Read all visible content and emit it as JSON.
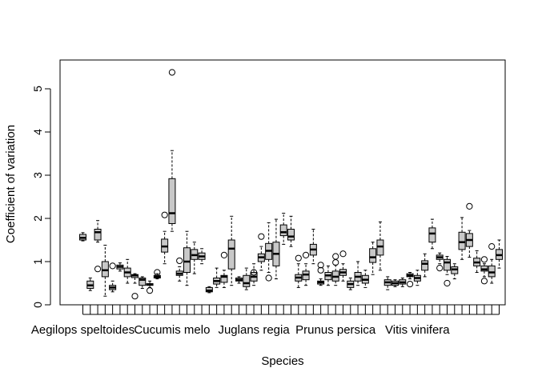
{
  "chart_data": {
    "type": "boxplot",
    "title": "",
    "xlabel": "Species",
    "ylabel": "Coefficient of variation",
    "ylim": [
      0,
      5.55
    ],
    "yticks": [
      0,
      1,
      2,
      3,
      4,
      5
    ],
    "grid": false,
    "legend": "none",
    "box_fill": "#c8c8c8",
    "xtick_labels": [
      {
        "index": 1,
        "label": "Aegilops speltoides"
      },
      {
        "index": 13,
        "label": "Cucumis melo"
      },
      {
        "index": 24,
        "label": "Juglans regia"
      },
      {
        "index": 35,
        "label": "Prunus persica"
      },
      {
        "index": 46,
        "label": "Vitis vinifera"
      }
    ],
    "boxes": [
      {
        "q1": 1.5,
        "med": 1.55,
        "q3": 1.63,
        "wlo": 1.48,
        "whi": 1.67,
        "out": []
      },
      {
        "q1": 0.38,
        "med": 0.45,
        "q3": 0.55,
        "wlo": 0.33,
        "whi": 0.62,
        "out": []
      },
      {
        "q1": 1.5,
        "med": 1.68,
        "q3": 1.75,
        "wlo": 1.45,
        "whi": 1.95,
        "out": [
          0.83
        ]
      },
      {
        "q1": 0.65,
        "med": 0.8,
        "q3": 1.0,
        "wlo": 0.2,
        "whi": 1.38,
        "out": []
      },
      {
        "q1": 0.35,
        "med": 0.4,
        "q3": 0.45,
        "wlo": 0.3,
        "whi": 0.55,
        "out": [
          0.9
        ]
      },
      {
        "q1": 0.83,
        "med": 0.88,
        "q3": 0.92,
        "wlo": 0.78,
        "whi": 0.97,
        "out": []
      },
      {
        "q1": 0.65,
        "med": 0.75,
        "q3": 0.85,
        "wlo": 0.5,
        "whi": 1.05,
        "out": []
      },
      {
        "q1": 0.63,
        "med": 0.68,
        "q3": 0.7,
        "wlo": 0.5,
        "whi": 0.72,
        "out": [
          0.2
        ]
      },
      {
        "q1": 0.45,
        "med": 0.58,
        "q3": 0.62,
        "wlo": 0.38,
        "whi": 0.65,
        "out": []
      },
      {
        "q1": 0.45,
        "med": 0.47,
        "q3": 0.49,
        "wlo": 0.4,
        "whi": 0.55,
        "out": [
          0.33
        ]
      },
      {
        "q1": 0.62,
        "med": 0.65,
        "q3": 0.68,
        "wlo": 0.6,
        "whi": 0.72,
        "out": [
          0.75
        ]
      },
      {
        "q1": 1.22,
        "med": 1.35,
        "q3": 1.52,
        "wlo": 0.95,
        "whi": 1.7,
        "out": [
          2.08
        ]
      },
      {
        "q1": 1.88,
        "med": 2.12,
        "q3": 2.92,
        "wlo": 1.7,
        "whi": 3.57,
        "out": [
          5.38
        ]
      },
      {
        "q1": 0.68,
        "med": 0.72,
        "q3": 0.78,
        "wlo": 0.55,
        "whi": 0.88,
        "out": [
          1.02
        ]
      },
      {
        "q1": 0.75,
        "med": 1.0,
        "q3": 1.32,
        "wlo": 0.45,
        "whi": 1.7,
        "out": []
      },
      {
        "q1": 1.05,
        "med": 1.15,
        "q3": 1.28,
        "wlo": 0.72,
        "whi": 1.45,
        "out": []
      },
      {
        "q1": 1.05,
        "med": 1.12,
        "q3": 1.2,
        "wlo": 0.95,
        "whi": 1.3,
        "out": []
      },
      {
        "q1": 0.3,
        "med": 0.33,
        "q3": 0.4,
        "wlo": 0.28,
        "whi": 0.42,
        "out": []
      },
      {
        "q1": 0.48,
        "med": 0.55,
        "q3": 0.62,
        "wlo": 0.4,
        "whi": 0.85,
        "out": []
      },
      {
        "q1": 0.52,
        "med": 0.65,
        "q3": 0.68,
        "wlo": 0.4,
        "whi": 0.8,
        "out": [
          1.15
        ]
      },
      {
        "q1": 0.83,
        "med": 1.3,
        "q3": 1.5,
        "wlo": 0.45,
        "whi": 2.05,
        "out": []
      },
      {
        "q1": 0.55,
        "med": 0.58,
        "q3": 0.62,
        "wlo": 0.5,
        "whi": 0.65,
        "out": []
      },
      {
        "q1": 0.42,
        "med": 0.5,
        "q3": 0.68,
        "wlo": 0.35,
        "whi": 0.85,
        "out": []
      },
      {
        "q1": 0.55,
        "med": 0.65,
        "q3": 0.75,
        "wlo": 0.45,
        "whi": 0.95,
        "out": [
          0.75
        ]
      },
      {
        "q1": 1.0,
        "med": 1.1,
        "q3": 1.18,
        "wlo": 0.8,
        "whi": 1.35,
        "out": [
          1.58
        ]
      },
      {
        "q1": 1.05,
        "med": 1.25,
        "q3": 1.42,
        "wlo": 0.75,
        "whi": 1.9,
        "out": [
          0.62
        ]
      },
      {
        "q1": 0.9,
        "med": 1.18,
        "q3": 1.45,
        "wlo": 0.6,
        "whi": 1.98,
        "out": []
      },
      {
        "q1": 1.6,
        "med": 1.68,
        "q3": 1.85,
        "wlo": 1.4,
        "whi": 2.12,
        "out": []
      },
      {
        "q1": 1.5,
        "med": 1.58,
        "q3": 1.75,
        "wlo": 1.35,
        "whi": 2.05,
        "out": []
      },
      {
        "q1": 0.55,
        "med": 0.63,
        "q3": 0.7,
        "wlo": 0.4,
        "whi": 0.95,
        "out": [
          1.08
        ]
      },
      {
        "q1": 0.58,
        "med": 0.7,
        "q3": 0.78,
        "wlo": 0.45,
        "whi": 0.95,
        "out": [
          1.15
        ]
      },
      {
        "q1": 1.15,
        "med": 1.28,
        "q3": 1.4,
        "wlo": 0.95,
        "whi": 1.75,
        "out": []
      },
      {
        "q1": 0.48,
        "med": 0.52,
        "q3": 0.55,
        "wlo": 0.45,
        "whi": 0.6,
        "out": [
          0.8,
          0.92
        ]
      },
      {
        "q1": 0.58,
        "med": 0.68,
        "q3": 0.75,
        "wlo": 0.45,
        "whi": 0.9,
        "out": []
      },
      {
        "q1": 0.55,
        "med": 0.65,
        "q3": 0.78,
        "wlo": 0.45,
        "whi": 0.92,
        "out": [
          1.12,
          0.98
        ]
      },
      {
        "q1": 0.68,
        "med": 0.75,
        "q3": 0.82,
        "wlo": 0.55,
        "whi": 0.95,
        "out": [
          1.18
        ]
      },
      {
        "q1": 0.4,
        "med": 0.48,
        "q3": 0.55,
        "wlo": 0.35,
        "whi": 0.62,
        "out": []
      },
      {
        "q1": 0.55,
        "med": 0.65,
        "q3": 0.75,
        "wlo": 0.45,
        "whi": 1.0,
        "out": []
      },
      {
        "q1": 0.5,
        "med": 0.58,
        "q3": 0.68,
        "wlo": 0.4,
        "whi": 0.8,
        "out": []
      },
      {
        "q1": 0.98,
        "med": 1.1,
        "q3": 1.3,
        "wlo": 0.7,
        "whi": 1.45,
        "out": []
      },
      {
        "q1": 1.15,
        "med": 1.35,
        "q3": 1.5,
        "wlo": 0.8,
        "whi": 1.92,
        "out": []
      },
      {
        "q1": 0.45,
        "med": 0.52,
        "q3": 0.58,
        "wlo": 0.35,
        "whi": 0.65,
        "out": []
      },
      {
        "q1": 0.45,
        "med": 0.5,
        "q3": 0.55,
        "wlo": 0.42,
        "whi": 0.58,
        "out": []
      },
      {
        "q1": 0.48,
        "med": 0.52,
        "q3": 0.58,
        "wlo": 0.42,
        "whi": 0.62,
        "out": []
      },
      {
        "q1": 0.65,
        "med": 0.68,
        "q3": 0.72,
        "wlo": 0.6,
        "whi": 0.75,
        "out": [
          0.48
        ]
      },
      {
        "q1": 0.55,
        "med": 0.62,
        "q3": 0.68,
        "wlo": 0.45,
        "whi": 0.8,
        "out": []
      },
      {
        "q1": 0.8,
        "med": 0.95,
        "q3": 1.02,
        "wlo": 0.65,
        "whi": 1.18,
        "out": []
      },
      {
        "q1": 1.45,
        "med": 1.65,
        "q3": 1.78,
        "wlo": 1.3,
        "whi": 1.98,
        "out": []
      },
      {
        "q1": 1.05,
        "med": 1.1,
        "q3": 1.15,
        "wlo": 0.95,
        "whi": 1.2,
        "out": [
          0.85
        ]
      },
      {
        "q1": 0.8,
        "med": 0.98,
        "q3": 1.05,
        "wlo": 0.7,
        "whi": 1.12,
        "out": [
          0.5
        ]
      },
      {
        "q1": 0.72,
        "med": 0.82,
        "q3": 0.88,
        "wlo": 0.6,
        "whi": 0.95,
        "out": []
      },
      {
        "q1": 1.28,
        "med": 1.45,
        "q3": 1.68,
        "wlo": 1.05,
        "whi": 2.02,
        "out": []
      },
      {
        "q1": 1.35,
        "med": 1.5,
        "q3": 1.65,
        "wlo": 1.1,
        "whi": 1.72,
        "out": [
          2.28
        ]
      },
      {
        "q1": 0.9,
        "med": 0.98,
        "q3": 1.08,
        "wlo": 0.75,
        "whi": 1.25,
        "out": []
      },
      {
        "q1": 0.78,
        "med": 0.82,
        "q3": 0.9,
        "wlo": 0.65,
        "whi": 0.95,
        "out": [
          0.55,
          1.05
        ]
      },
      {
        "q1": 0.65,
        "med": 0.75,
        "q3": 0.9,
        "wlo": 0.5,
        "whi": 1.05,
        "out": [
          1.35
        ]
      },
      {
        "q1": 1.05,
        "med": 1.15,
        "q3": 1.28,
        "wlo": 0.85,
        "whi": 1.5,
        "out": []
      }
    ]
  }
}
